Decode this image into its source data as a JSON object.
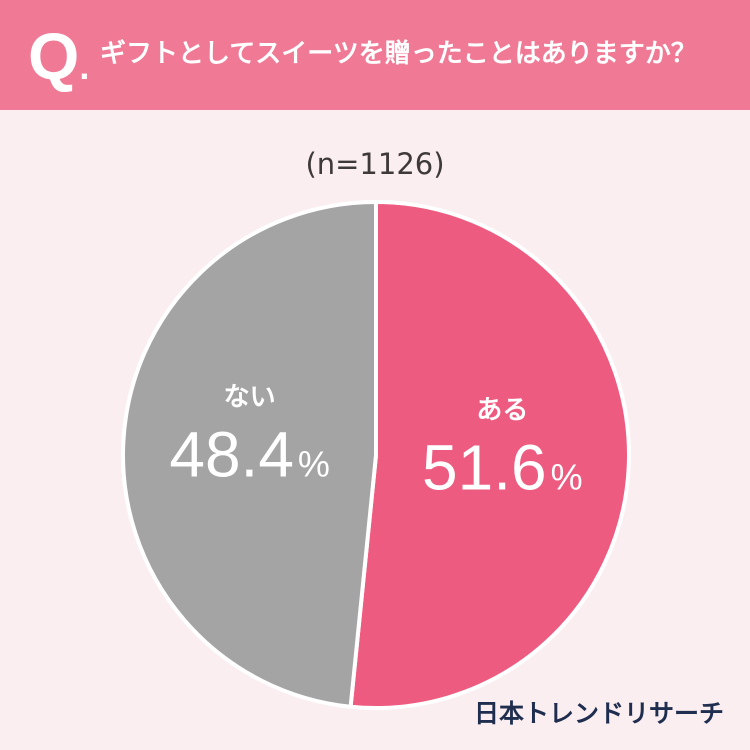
{
  "header": {
    "q_letter": "Q",
    "q_dot": ".",
    "question": "ギフトとしてスイーツを贈ったことはありますか？"
  },
  "sample_size": "(n=1126)",
  "brand": "日本トレンドリサーチ",
  "colors": {
    "header_bg": "#f07a95",
    "page_bg": "#fbeef1",
    "aru": "#ee5b80",
    "nai": "#a4a4a4",
    "label": "#ffffff"
  },
  "chart_data": {
    "type": "pie",
    "title": "ギフトとしてスイーツを贈ったことはありますか？",
    "n": 1126,
    "slices": [
      {
        "label": "ある",
        "value": 51.6,
        "display": "51.6",
        "unit": "%",
        "color": "#ee5b80"
      },
      {
        "label": "ない",
        "value": 48.4,
        "display": "48.4",
        "unit": "%",
        "color": "#a4a4a4"
      }
    ]
  }
}
